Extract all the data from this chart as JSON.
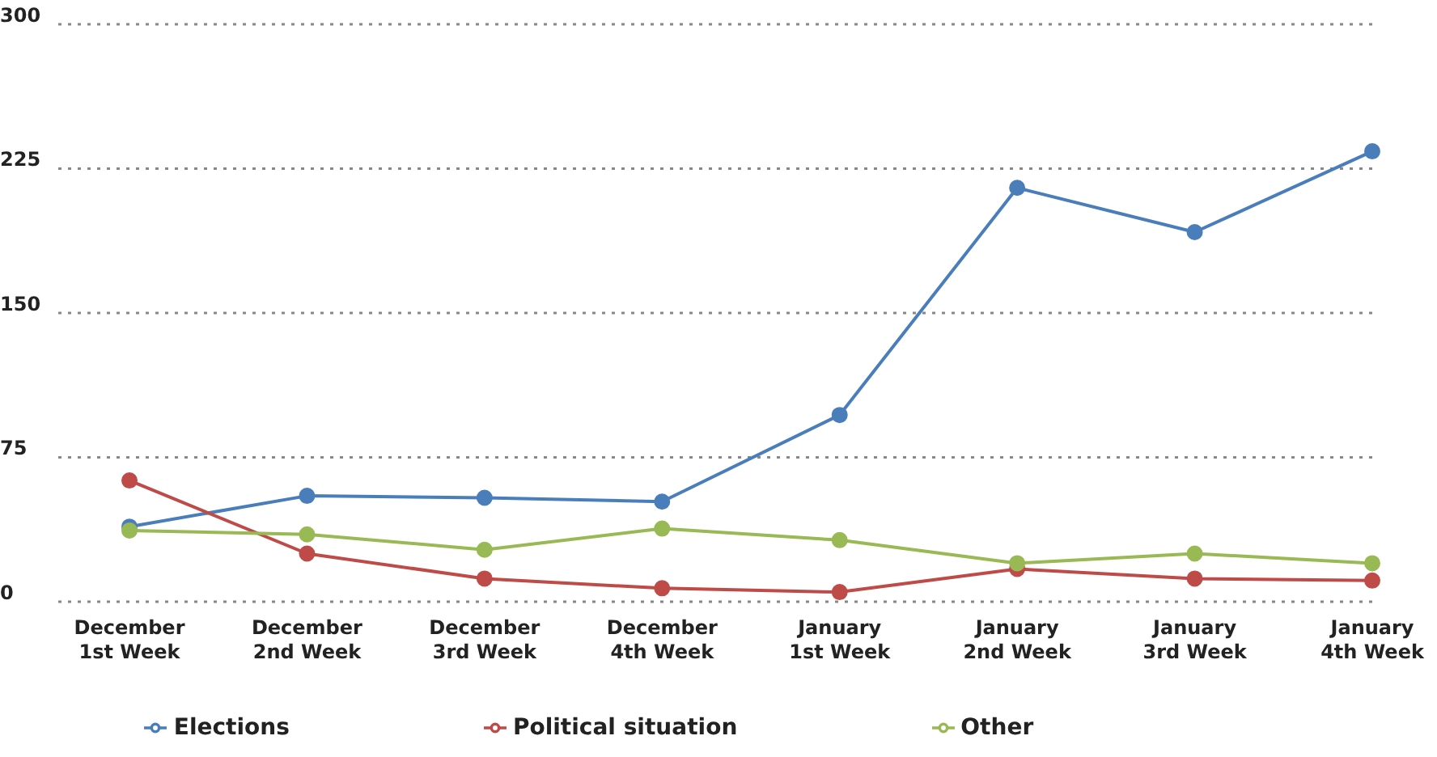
{
  "chart_data": {
    "type": "line",
    "categories": [
      "December 1st Week",
      "December 2nd Week",
      "December 3rd Week",
      "December 4th Week",
      "January 1st Week",
      "January 2nd Week",
      "January 3rd Week",
      "January 4th Week"
    ],
    "series": [
      {
        "name": "Elections",
        "color": "#4a7ebb",
        "values": [
          39,
          55,
          54,
          52,
          97,
          215,
          192,
          234
        ]
      },
      {
        "name": "Political situation",
        "color": "#be4b48",
        "values": [
          63,
          25,
          12,
          7,
          5,
          17,
          12,
          11
        ]
      },
      {
        "name": "Other",
        "color": "#98b954",
        "values": [
          37,
          35,
          27,
          38,
          32,
          20,
          25,
          20
        ]
      }
    ],
    "ylim": [
      0,
      300
    ],
    "yticks": [
      0,
      75,
      150,
      225,
      300
    ],
    "grid": "y",
    "legend": "bottom",
    "marker": "circle",
    "line_style": "solid"
  }
}
